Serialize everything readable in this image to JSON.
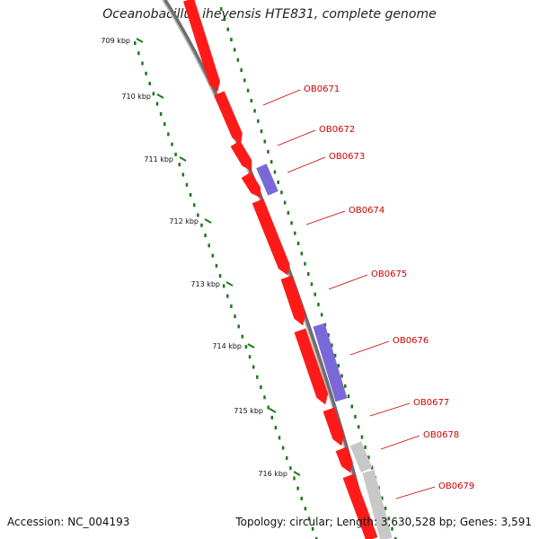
{
  "title": "Oceanobacillus iheyensis HTE831, complete genome",
  "accession": "Accession: NC_004193",
  "summary": "Topology: circular; Length: 3,630,528 bp; Genes: 3,591",
  "colors": {
    "forward_gene": "#ff1a1a",
    "reverse_gene": "#7b68d8",
    "other_gene": "#c8c8c8",
    "backbone": "#808080",
    "ticks": "#1a7a1a",
    "label": "#cc0000"
  },
  "scale_labels": [
    "709 kbp",
    "710 kbp",
    "711 kbp",
    "712 kbp",
    "713 kbp",
    "714 kbp",
    "715 kbp",
    "716 kbp"
  ],
  "genes": [
    {
      "id": "OB0671",
      "strand": "forward",
      "type": "cds"
    },
    {
      "id": "OB0672",
      "strand": "forward",
      "type": "cds"
    },
    {
      "id": "OB0673",
      "strand": "reverse",
      "type": "cds"
    },
    {
      "id": "OB0674",
      "strand": "forward",
      "type": "cds"
    },
    {
      "id": "OB0675",
      "strand": "forward",
      "type": "cds"
    },
    {
      "id": "OB0676",
      "strand": "reverse",
      "type": "cds"
    },
    {
      "id": "OB0677",
      "strand": "forward",
      "type": "cds"
    },
    {
      "id": "OB0678",
      "strand": "forward",
      "type": "other"
    },
    {
      "id": "OB0679",
      "strand": "forward",
      "type": "other"
    }
  ]
}
